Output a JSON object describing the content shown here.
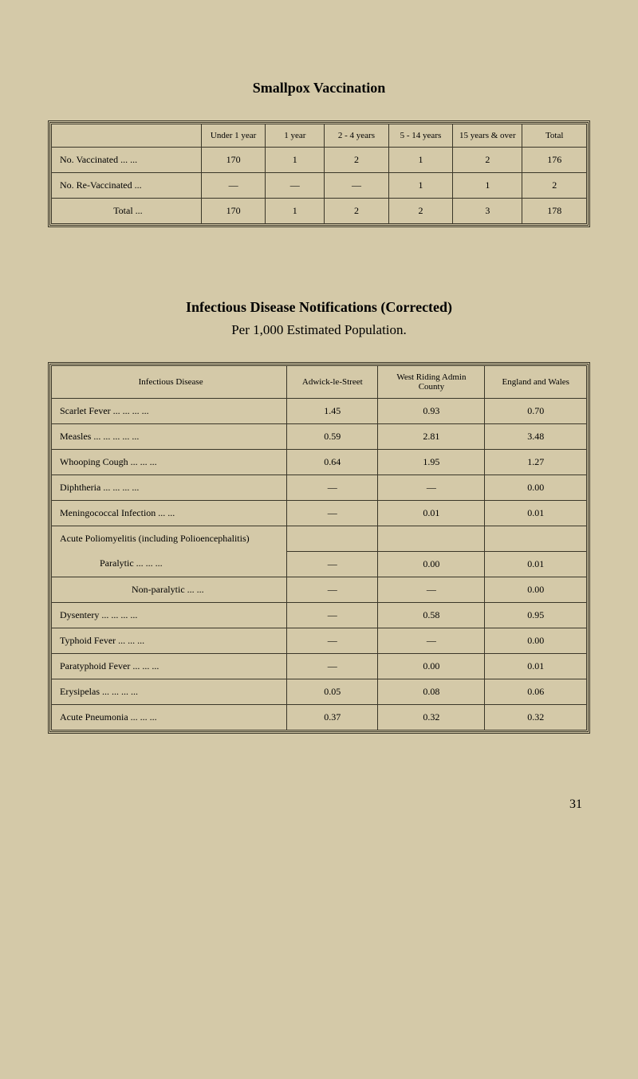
{
  "page_number": "31",
  "table1": {
    "title": "Smallpox Vaccination",
    "headers": [
      "",
      "Under 1 year",
      "1 year",
      "2 - 4 years",
      "5 - 14 years",
      "15 years & over",
      "Total"
    ],
    "rows": [
      [
        "No. Vaccinated   ...   ...",
        "170",
        "1",
        "2",
        "1",
        "2",
        "176"
      ],
      [
        "No. Re-Vaccinated   ...",
        "—",
        "—",
        "—",
        "1",
        "1",
        "2"
      ],
      [
        "Total    ...",
        "170",
        "1",
        "2",
        "2",
        "3",
        "178"
      ]
    ],
    "column_widths": [
      "28%",
      "12%",
      "11%",
      "12%",
      "12%",
      "13%",
      "12%"
    ],
    "background_color": "#d4c9a8",
    "border_color": "#3a3628",
    "font_size": 12,
    "header_font_size": 11
  },
  "section2": {
    "title": "Infectious Disease Notifications (Corrected)",
    "subtitle": "Per 1,000 Estimated Population."
  },
  "table2": {
    "headers": [
      "Infectious Disease",
      "Adwick-le-Street",
      "West Riding Admin County",
      "England and Wales"
    ],
    "rows": [
      {
        "label": "Scarlet Fever   ...   ...   ...   ...",
        "v1": "1.45",
        "v2": "0.93",
        "v3": "0.70",
        "indent": 0
      },
      {
        "label": "Measles   ...   ...   ...   ...   ...",
        "v1": "0.59",
        "v2": "2.81",
        "v3": "3.48",
        "indent": 0
      },
      {
        "label": "Whooping Cough       ...   ...   ...",
        "v1": "0.64",
        "v2": "1.95",
        "v3": "1.27",
        "indent": 0
      },
      {
        "label": "Diphtheria        ...   ...   ...   ...",
        "v1": "—",
        "v2": "—",
        "v3": "0.00",
        "indent": 0
      },
      {
        "label": "Meningococcal Infection    ...   ...",
        "v1": "—",
        "v2": "0.01",
        "v3": "0.01",
        "indent": 0
      },
      {
        "label": "Acute Poliomyelitis (including Polioencephalitis)",
        "v1": "",
        "v2": "",
        "v3": "",
        "indent": 0,
        "noborder": true
      },
      {
        "label": "Paralytic   ...   ...   ...",
        "v1": "—",
        "v2": "0.00",
        "v3": "0.01",
        "indent": 1
      },
      {
        "label": "Non-paralytic    ...   ...",
        "v1": "—",
        "v2": "—",
        "v3": "0.00",
        "indent": 2
      },
      {
        "label": "Dysentery       ...   ...   ...   ...",
        "v1": "—",
        "v2": "0.58",
        "v3": "0.95",
        "indent": 0
      },
      {
        "label": "Typhoid Fever       ...   ...   ...",
        "v1": "—",
        "v2": "—",
        "v3": "0.00",
        "indent": 0
      },
      {
        "label": "Paratyphoid Fever   ...   ...   ...",
        "v1": "—",
        "v2": "0.00",
        "v3": "0.01",
        "indent": 0
      },
      {
        "label": "Erysipelas       ...   ...   ...   ...",
        "v1": "0.05",
        "v2": "0.08",
        "v3": "0.06",
        "indent": 0
      },
      {
        "label": "Acute Pneumonia    ...   ...   ...",
        "v1": "0.37",
        "v2": "0.32",
        "v3": "0.32",
        "indent": 0
      }
    ],
    "column_widths": [
      "44%",
      "17%",
      "20%",
      "19%"
    ],
    "background_color": "#d4c9a8",
    "border_color": "#3a3628",
    "font_size": 12
  }
}
